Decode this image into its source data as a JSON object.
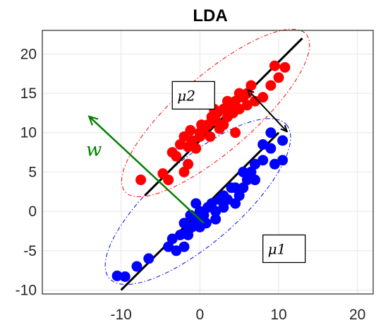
{
  "chart_data": {
    "type": "scatter",
    "title": "LDA",
    "xlabel": "",
    "ylabel": "",
    "xlim": [
      -20,
      22
    ],
    "ylim": [
      -10.5,
      23
    ],
    "xticks": [
      -10,
      0,
      10,
      20
    ],
    "yticks": [
      -10,
      -5,
      0,
      5,
      10,
      15,
      20
    ],
    "grid": true,
    "series": [
      {
        "color": "#ff0000",
        "points": [
          [
            -7.5,
            4
          ],
          [
            -4.7,
            4.8
          ],
          [
            -4,
            4
          ],
          [
            -2,
            5
          ],
          [
            -1.5,
            6
          ],
          [
            -3,
            7
          ],
          [
            -2.5,
            8.5
          ],
          [
            -1.5,
            8.2
          ],
          [
            -2,
            9.5
          ],
          [
            -1,
            9
          ],
          [
            -1.2,
            10.3
          ],
          [
            -0.5,
            8
          ],
          [
            0,
            9.5
          ],
          [
            0,
            10
          ],
          [
            0.5,
            10.5
          ],
          [
            0.2,
            11
          ],
          [
            1,
            11
          ],
          [
            1.3,
            9.5
          ],
          [
            1.5,
            12
          ],
          [
            2,
            11.5
          ],
          [
            2.5,
            10.5
          ],
          [
            3,
            13
          ],
          [
            2.2,
            12.5
          ],
          [
            3,
            11
          ],
          [
            3.5,
            12
          ],
          [
            3.5,
            14
          ],
          [
            4,
            13.5
          ],
          [
            4.2,
            12.5
          ],
          [
            4.5,
            14
          ],
          [
            5,
            13
          ],
          [
            5.5,
            14.5
          ],
          [
            6,
            15
          ],
          [
            6.5,
            16
          ],
          [
            6,
            13.5
          ],
          [
            7,
            14
          ],
          [
            8,
            14.5
          ],
          [
            9,
            16
          ],
          [
            10,
            17
          ],
          [
            9.5,
            18.5
          ],
          [
            10.8,
            18.3
          ],
          [
            5,
            15
          ],
          [
            -3.5,
            7.5
          ],
          [
            1.8,
            13
          ],
          [
            4.5,
            10
          ]
        ]
      },
      {
        "color": "#0000ff",
        "points": [
          [
            -10.5,
            -8.2
          ],
          [
            -9.5,
            -8.3
          ],
          [
            -8,
            -7
          ],
          [
            -6.5,
            -6
          ],
          [
            -4,
            -4.5
          ],
          [
            -3.5,
            -3.5
          ],
          [
            -3,
            -5
          ],
          [
            -2,
            -4.5
          ],
          [
            -2.5,
            -3
          ],
          [
            -2,
            -1.5
          ],
          [
            -1.5,
            -3
          ],
          [
            -1,
            -2
          ],
          [
            -1.2,
            -0.5
          ],
          [
            -0.5,
            -1
          ],
          [
            0,
            0
          ],
          [
            0,
            -2
          ],
          [
            0.5,
            -0.5
          ],
          [
            1,
            0.5
          ],
          [
            0.8,
            -1.5
          ],
          [
            1.5,
            1
          ],
          [
            2,
            0
          ],
          [
            2,
            -1
          ],
          [
            2.5,
            1.5
          ],
          [
            3,
            0.5
          ],
          [
            3,
            2
          ],
          [
            3.5,
            1.5
          ],
          [
            4,
            3
          ],
          [
            4.5,
            3
          ],
          [
            5,
            2
          ],
          [
            5.5,
            3
          ],
          [
            6,
            4
          ],
          [
            6.5,
            5
          ],
          [
            7,
            4
          ],
          [
            7,
            6
          ],
          [
            8,
            6.5
          ],
          [
            9,
            8
          ],
          [
            9.5,
            6
          ],
          [
            10.5,
            6.5
          ],
          [
            10.5,
            9
          ],
          [
            9,
            10
          ],
          [
            8,
            8.5
          ],
          [
            -0.5,
            1
          ],
          [
            -1.5,
            -2.5
          ],
          [
            4.5,
            1
          ],
          [
            5.5,
            5
          ]
        ]
      }
    ],
    "fit_lines": [
      {
        "color": "#000000",
        "from": [
          -7,
          2
        ],
        "to": [
          13,
          22
        ]
      },
      {
        "color": "#000000",
        "from": [
          -10,
          -10
        ],
        "to": [
          10,
          10
        ]
      }
    ],
    "ellipses": [
      {
        "color": "#ff0000",
        "style": "dashdot",
        "from": [
          -9.5,
          2.5
        ],
        "to": [
          13.5,
          22.5
        ],
        "half_width": 2.2
      },
      {
        "color": "#0000ff",
        "style": "dashdot",
        "from": [
          -11.5,
          -8.5
        ],
        "to": [
          11,
          11
        ],
        "half_width": 2.4
      }
    ],
    "annotations": [
      {
        "text": "μ2",
        "at": [
          -3.5,
          16.5
        ]
      },
      {
        "text": "μ1",
        "at": [
          8,
          -3
        ]
      }
    ],
    "between_arrow": {
      "color": "#000000",
      "from": [
        6.5,
        15
      ],
      "to": [
        11,
        10.2
      ]
    },
    "projection_vector": {
      "label": "w",
      "color": "#008000",
      "from": [
        0.5,
        -1.5
      ],
      "to": [
        -14,
        12
      ]
    }
  }
}
